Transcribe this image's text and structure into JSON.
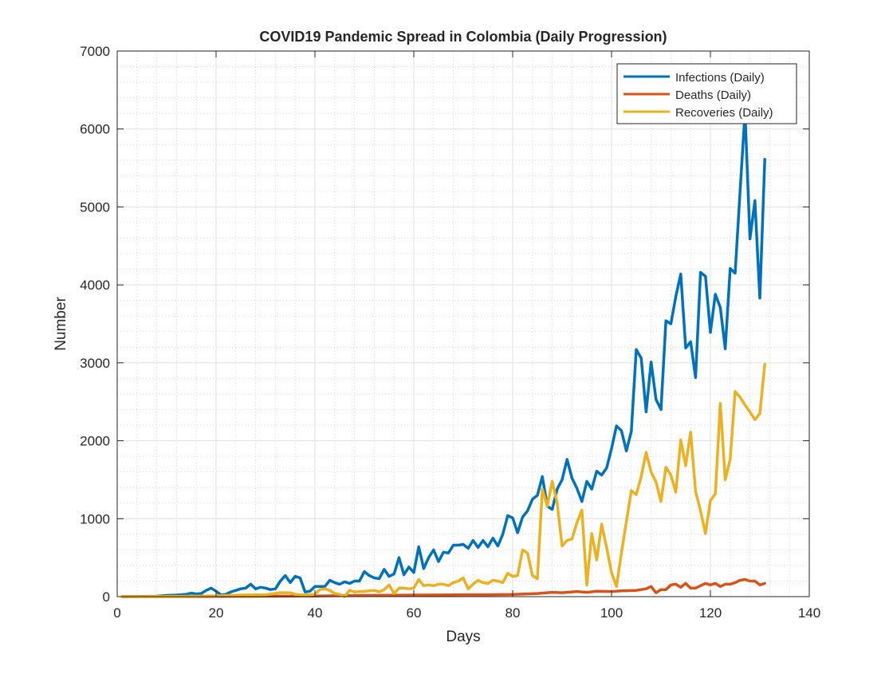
{
  "chart_data": {
    "type": "line",
    "title": "COVID19 Pandemic Spread in Colombia (Daily Progression)",
    "xlabel": "Days",
    "ylabel": "Number",
    "xlim": [
      0,
      140
    ],
    "ylim": [
      0,
      7000
    ],
    "x_ticks": [
      0,
      20,
      40,
      60,
      80,
      100,
      120,
      140
    ],
    "y_ticks": [
      0,
      1000,
      2000,
      3000,
      4000,
      5000,
      6000,
      7000
    ],
    "x_tick_labels": [
      "0",
      "20",
      "40",
      "60",
      "80",
      "100",
      "120",
      "140"
    ],
    "y_tick_labels": [
      "0",
      "1000",
      "2000",
      "3000",
      "4000",
      "5000",
      "6000",
      "7000"
    ],
    "grid": true,
    "minor_grid": true,
    "legend_position": "top-right",
    "series": [
      {
        "name": "Infections (Daily)",
        "color": "#0072BD",
        "points": [
          [
            1,
            0
          ],
          [
            5,
            2
          ],
          [
            8,
            5
          ],
          [
            10,
            15
          ],
          [
            12,
            20
          ],
          [
            14,
            30
          ],
          [
            15,
            45
          ],
          [
            16,
            35
          ],
          [
            17,
            40
          ],
          [
            18,
            80
          ],
          [
            19,
            110
          ],
          [
            20,
            70
          ],
          [
            21,
            20
          ],
          [
            22,
            30
          ],
          [
            23,
            60
          ],
          [
            24,
            80
          ],
          [
            25,
            100
          ],
          [
            26,
            110
          ],
          [
            27,
            160
          ],
          [
            28,
            100
          ],
          [
            29,
            120
          ],
          [
            30,
            110
          ],
          [
            31,
            90
          ],
          [
            32,
            100
          ],
          [
            33,
            200
          ],
          [
            34,
            270
          ],
          [
            35,
            180
          ],
          [
            36,
            260
          ],
          [
            37,
            240
          ],
          [
            38,
            60
          ],
          [
            39,
            70
          ],
          [
            40,
            130
          ],
          [
            41,
            130
          ],
          [
            42,
            130
          ],
          [
            43,
            210
          ],
          [
            44,
            180
          ],
          [
            45,
            160
          ],
          [
            46,
            190
          ],
          [
            47,
            170
          ],
          [
            48,
            200
          ],
          [
            49,
            200
          ],
          [
            50,
            320
          ],
          [
            51,
            270
          ],
          [
            52,
            240
          ],
          [
            53,
            230
          ],
          [
            54,
            350
          ],
          [
            55,
            260
          ],
          [
            56,
            290
          ],
          [
            57,
            500
          ],
          [
            58,
            280
          ],
          [
            59,
            380
          ],
          [
            60,
            310
          ],
          [
            61,
            640
          ],
          [
            62,
            360
          ],
          [
            63,
            500
          ],
          [
            64,
            600
          ],
          [
            65,
            450
          ],
          [
            66,
            570
          ],
          [
            67,
            560
          ],
          [
            68,
            660
          ],
          [
            69,
            660
          ],
          [
            70,
            670
          ],
          [
            71,
            620
          ],
          [
            72,
            720
          ],
          [
            73,
            630
          ],
          [
            74,
            720
          ],
          [
            75,
            640
          ],
          [
            76,
            750
          ],
          [
            77,
            650
          ],
          [
            78,
            800
          ],
          [
            79,
            1040
          ],
          [
            80,
            1010
          ],
          [
            81,
            820
          ],
          [
            82,
            1020
          ],
          [
            83,
            1100
          ],
          [
            84,
            1250
          ],
          [
            85,
            1300
          ],
          [
            86,
            1540
          ],
          [
            87,
            1160
          ],
          [
            88,
            1120
          ],
          [
            89,
            1380
          ],
          [
            90,
            1500
          ],
          [
            91,
            1760
          ],
          [
            92,
            1520
          ],
          [
            93,
            1390
          ],
          [
            94,
            1220
          ],
          [
            95,
            1480
          ],
          [
            96,
            1380
          ],
          [
            97,
            1610
          ],
          [
            98,
            1560
          ],
          [
            99,
            1650
          ],
          [
            100,
            1900
          ],
          [
            101,
            2190
          ],
          [
            102,
            2130
          ],
          [
            103,
            1870
          ],
          [
            104,
            2120
          ],
          [
            105,
            3170
          ],
          [
            106,
            3060
          ],
          [
            107,
            2370
          ],
          [
            108,
            3010
          ],
          [
            109,
            2530
          ],
          [
            110,
            2400
          ],
          [
            111,
            3540
          ],
          [
            112,
            3500
          ],
          [
            113,
            3850
          ],
          [
            114,
            4140
          ],
          [
            115,
            3190
          ],
          [
            116,
            3270
          ],
          [
            117,
            2810
          ],
          [
            118,
            4160
          ],
          [
            119,
            4110
          ],
          [
            120,
            3390
          ],
          [
            121,
            3880
          ],
          [
            122,
            3710
          ],
          [
            123,
            3180
          ],
          [
            124,
            4210
          ],
          [
            125,
            4150
          ],
          [
            126,
            5200
          ],
          [
            127,
            6220
          ],
          [
            128,
            4590
          ],
          [
            129,
            5080
          ],
          [
            130,
            3830
          ],
          [
            131,
            5610
          ]
        ]
      },
      {
        "name": "Deaths (Daily)",
        "color": "#D95319",
        "points": [
          [
            1,
            0
          ],
          [
            20,
            2
          ],
          [
            30,
            5
          ],
          [
            40,
            8
          ],
          [
            45,
            12
          ],
          [
            50,
            15
          ],
          [
            55,
            18
          ],
          [
            60,
            20
          ],
          [
            65,
            22
          ],
          [
            70,
            25
          ],
          [
            75,
            25
          ],
          [
            80,
            28
          ],
          [
            85,
            40
          ],
          [
            88,
            55
          ],
          [
            90,
            50
          ],
          [
            93,
            65
          ],
          [
            95,
            55
          ],
          [
            97,
            70
          ],
          [
            100,
            65
          ],
          [
            102,
            75
          ],
          [
            105,
            80
          ],
          [
            107,
            100
          ],
          [
            108,
            130
          ],
          [
            109,
            50
          ],
          [
            110,
            90
          ],
          [
            111,
            90
          ],
          [
            112,
            150
          ],
          [
            113,
            160
          ],
          [
            114,
            120
          ],
          [
            115,
            170
          ],
          [
            116,
            110
          ],
          [
            117,
            110
          ],
          [
            118,
            140
          ],
          [
            119,
            170
          ],
          [
            120,
            150
          ],
          [
            121,
            170
          ],
          [
            122,
            130
          ],
          [
            123,
            160
          ],
          [
            124,
            160
          ],
          [
            125,
            180
          ],
          [
            126,
            210
          ],
          [
            127,
            220
          ],
          [
            128,
            200
          ],
          [
            129,
            200
          ],
          [
            130,
            150
          ],
          [
            131,
            170
          ]
        ]
      },
      {
        "name": "Recoveries (Daily)",
        "color": "#EDB120",
        "points": [
          [
            1,
            0
          ],
          [
            10,
            2
          ],
          [
            15,
            5
          ],
          [
            20,
            10
          ],
          [
            25,
            20
          ],
          [
            30,
            25
          ],
          [
            33,
            50
          ],
          [
            35,
            50
          ],
          [
            36,
            30
          ],
          [
            38,
            20
          ],
          [
            40,
            30
          ],
          [
            41,
            90
          ],
          [
            42,
            100
          ],
          [
            43,
            80
          ],
          [
            44,
            40
          ],
          [
            45,
            30
          ],
          [
            46,
            0
          ],
          [
            47,
            80
          ],
          [
            48,
            60
          ],
          [
            50,
            70
          ],
          [
            52,
            80
          ],
          [
            53,
            60
          ],
          [
            54,
            90
          ],
          [
            55,
            150
          ],
          [
            56,
            40
          ],
          [
            57,
            110
          ],
          [
            58,
            110
          ],
          [
            59,
            100
          ],
          [
            60,
            110
          ],
          [
            61,
            220
          ],
          [
            62,
            140
          ],
          [
            63,
            150
          ],
          [
            64,
            140
          ],
          [
            65,
            160
          ],
          [
            66,
            160
          ],
          [
            67,
            140
          ],
          [
            68,
            180
          ],
          [
            69,
            200
          ],
          [
            70,
            240
          ],
          [
            71,
            100
          ],
          [
            72,
            160
          ],
          [
            73,
            210
          ],
          [
            74,
            180
          ],
          [
            75,
            170
          ],
          [
            76,
            210
          ],
          [
            77,
            200
          ],
          [
            78,
            180
          ],
          [
            79,
            300
          ],
          [
            80,
            260
          ],
          [
            81,
            270
          ],
          [
            82,
            600
          ],
          [
            83,
            560
          ],
          [
            84,
            270
          ],
          [
            85,
            230
          ],
          [
            86,
            1380
          ],
          [
            87,
            1160
          ],
          [
            88,
            1480
          ],
          [
            89,
            1200
          ],
          [
            90,
            650
          ],
          [
            91,
            720
          ],
          [
            92,
            740
          ],
          [
            93,
            950
          ],
          [
            94,
            1110
          ],
          [
            95,
            150
          ],
          [
            96,
            810
          ],
          [
            97,
            470
          ],
          [
            98,
            930
          ],
          [
            99,
            630
          ],
          [
            100,
            310
          ],
          [
            101,
            130
          ],
          [
            102,
            560
          ],
          [
            103,
            960
          ],
          [
            104,
            1360
          ],
          [
            105,
            1310
          ],
          [
            106,
            1540
          ],
          [
            107,
            1850
          ],
          [
            108,
            1600
          ],
          [
            109,
            1470
          ],
          [
            110,
            1220
          ],
          [
            111,
            1660
          ],
          [
            112,
            1560
          ],
          [
            113,
            1340
          ],
          [
            114,
            2010
          ],
          [
            115,
            1680
          ],
          [
            116,
            2110
          ],
          [
            117,
            1350
          ],
          [
            118,
            1100
          ],
          [
            119,
            810
          ],
          [
            120,
            1230
          ],
          [
            121,
            1320
          ],
          [
            122,
            2480
          ],
          [
            123,
            1500
          ],
          [
            124,
            1760
          ],
          [
            125,
            2630
          ],
          [
            126,
            2560
          ],
          [
            127,
            2460
          ],
          [
            128,
            2370
          ],
          [
            129,
            2270
          ],
          [
            130,
            2350
          ],
          [
            131,
            2980
          ]
        ]
      }
    ]
  }
}
